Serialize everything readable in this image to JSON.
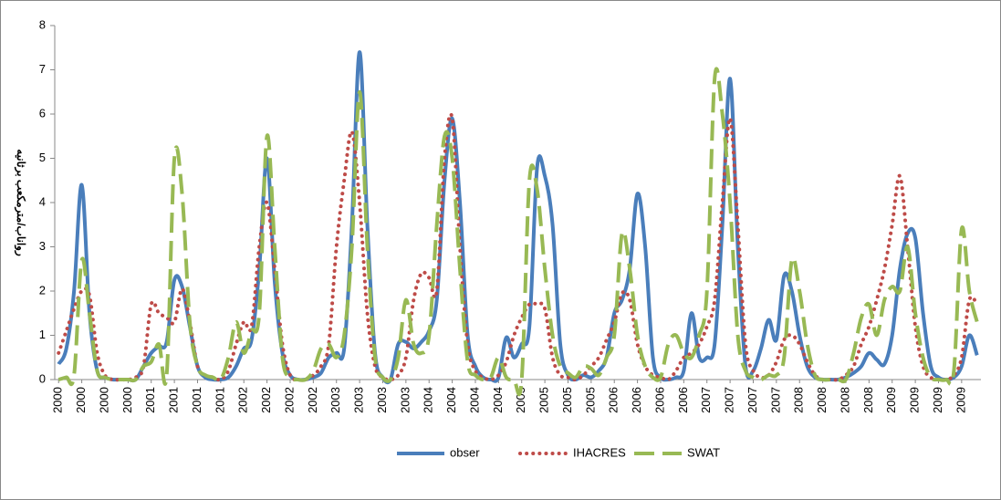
{
  "chart_data": {
    "type": "line",
    "y_label": "رواناب/مترمکعب برثانیه",
    "categories": [
      "2000",
      null,
      null,
      "2000",
      null,
      null,
      "2000",
      null,
      null,
      "2000",
      null,
      null,
      "2001",
      null,
      null,
      "2001",
      null,
      null,
      "2001",
      null,
      null,
      "2001",
      null,
      null,
      "2002",
      null,
      null,
      "2002",
      null,
      null,
      "2002",
      null,
      null,
      "2002",
      null,
      null,
      "2003",
      null,
      null,
      "2003",
      null,
      null,
      "2003",
      null,
      null,
      "2003",
      null,
      null,
      "2004",
      null,
      null,
      "2004",
      null,
      null,
      "2004",
      null,
      null,
      "2004",
      null,
      null,
      "2005",
      null,
      null,
      "2005",
      null,
      null,
      "2005",
      null,
      null,
      "2005",
      null,
      null,
      "2006",
      null,
      null,
      "2006",
      null,
      null,
      "2006",
      null,
      null,
      "2006",
      null,
      null,
      "2007",
      null,
      null,
      "2007",
      null,
      null,
      "2007",
      null,
      null,
      "2007",
      null,
      null,
      "2008",
      null,
      null,
      "2008",
      null,
      null,
      "2008",
      null,
      null,
      "2008",
      null,
      null,
      "2009",
      null,
      null,
      "2009",
      null,
      null,
      "2009",
      null,
      null,
      "2009",
      null,
      null
    ],
    "series": [
      {
        "name": "obser",
        "color": "#4a7ebb",
        "dash": "none",
        "values": [
          0.35,
          0.7,
          2.0,
          4.4,
          1.5,
          0.2,
          0.05,
          0,
          0,
          0,
          0,
          0.3,
          0.6,
          0.75,
          0.85,
          2.25,
          2.1,
          1.2,
          0.3,
          0.05,
          0,
          0,
          0.05,
          0.3,
          0.7,
          0.9,
          2.5,
          5.0,
          2.2,
          0.6,
          0.1,
          0,
          0,
          0.05,
          0.15,
          0.5,
          0.6,
          0.7,
          3.5,
          7.4,
          3.5,
          0.6,
          0.05,
          0,
          0.8,
          0.85,
          0.7,
          0.85,
          1.1,
          1.8,
          4.5,
          5.9,
          4.0,
          1.0,
          0.3,
          0.05,
          0,
          0.05,
          0.95,
          0.5,
          0.8,
          1.2,
          4.8,
          4.6,
          3.5,
          0.8,
          0.1,
          0,
          0.1,
          0.05,
          0.2,
          0.5,
          1.5,
          1.8,
          2.5,
          4.2,
          3.0,
          0.5,
          0.05,
          0,
          0.05,
          0.2,
          1.5,
          0.5,
          0.5,
          0.8,
          3.5,
          6.8,
          3.0,
          0.3,
          0.2,
          0.7,
          1.35,
          0.9,
          2.35,
          2.0,
          1.0,
          0.3,
          0.05,
          0,
          0,
          0,
          0.05,
          0.15,
          0.3,
          0.6,
          0.45,
          0.35,
          1.0,
          2.5,
          3.3,
          3.2,
          1.5,
          0.3,
          0.05,
          0,
          0.05,
          0.3,
          1.0,
          0.55
        ]
      },
      {
        "name": "IHACRES",
        "color": "#be4b48",
        "dash": "dotted",
        "values": [
          0.6,
          1.1,
          1.6,
          2.0,
          1.9,
          0.6,
          0.1,
          0,
          0,
          0,
          0.05,
          0.3,
          1.7,
          1.5,
          1.4,
          1.3,
          2.05,
          1.3,
          0.3,
          0.1,
          0.05,
          0,
          0.2,
          0.8,
          1.3,
          1.2,
          3.0,
          4.0,
          2.5,
          0.8,
          0.1,
          0,
          0,
          0.1,
          0.3,
          0.8,
          3.0,
          4.5,
          5.6,
          4.0,
          1.5,
          0.3,
          0.05,
          0,
          0.1,
          0.5,
          1.8,
          2.4,
          2.3,
          2.0,
          5.0,
          5.9,
          3.0,
          0.8,
          0.2,
          0.05,
          0,
          0.1,
          0.4,
          1.0,
          1.4,
          1.7,
          1.7,
          1.6,
          0.5,
          0.1,
          0.05,
          0,
          0.1,
          0.3,
          0.5,
          0.9,
          1.3,
          1.95,
          1.8,
          0.8,
          0.3,
          0.1,
          0.05,
          0,
          0.2,
          0.5,
          0.6,
          0.8,
          1.2,
          1.8,
          4.0,
          5.9,
          3.5,
          0.8,
          0.2,
          0.05,
          0.1,
          0.4,
          0.9,
          1.0,
          0.8,
          0.4,
          0.1,
          0,
          0,
          0,
          0.1,
          0.3,
          0.8,
          1.2,
          1.8,
          2.5,
          3.5,
          4.6,
          3.0,
          1.2,
          0.3,
          0.05,
          0,
          0,
          0.1,
          0.5,
          1.8,
          1.7
        ]
      },
      {
        "name": "SWAT",
        "color": "#98b954",
        "dash": "dashed",
        "values": [
          0,
          0.05,
          0.1,
          2.7,
          1.5,
          0.2,
          0.05,
          0,
          0,
          0,
          0,
          0.3,
          0.4,
          0.8,
          0.1,
          5.0,
          4.2,
          1.3,
          0.3,
          0.1,
          0.05,
          0,
          0.5,
          1.3,
          0.6,
          1.1,
          1.5,
          5.5,
          3.0,
          0.5,
          0.05,
          0,
          0,
          0.2,
          0.7,
          0.8,
          0.5,
          1.0,
          3.0,
          6.5,
          3.0,
          0.5,
          0.05,
          0,
          0.5,
          1.8,
          0.8,
          0.6,
          1.0,
          3.5,
          5.5,
          5.0,
          2.5,
          0.4,
          0.1,
          0,
          0.05,
          0.5,
          0.05,
          0,
          0,
          4.5,
          4.3,
          2.5,
          1.0,
          0.3,
          0.15,
          0.05,
          0.3,
          0.25,
          0.1,
          0.5,
          1.0,
          3.3,
          2.5,
          1.0,
          0.3,
          0.05,
          0.05,
          0.8,
          1.0,
          0.6,
          0.5,
          1.0,
          2.0,
          6.8,
          6.0,
          4.0,
          1.0,
          0.2,
          0.05,
          0,
          0.1,
          0.1,
          0.5,
          2.7,
          2.0,
          0.8,
          0.1,
          0,
          0,
          0,
          0,
          0.6,
          1.4,
          1.7,
          1.0,
          1.8,
          2.1,
          2.0,
          3.0,
          1.5,
          0.5,
          0.05,
          0,
          0,
          0.2,
          3.4,
          2.0,
          1.3
        ]
      }
    ],
    "ylim": [
      0,
      8
    ],
    "yticks": [
      0,
      1,
      2,
      3,
      4,
      5,
      6,
      7,
      8
    ],
    "grid": false,
    "legend": "bottom"
  }
}
